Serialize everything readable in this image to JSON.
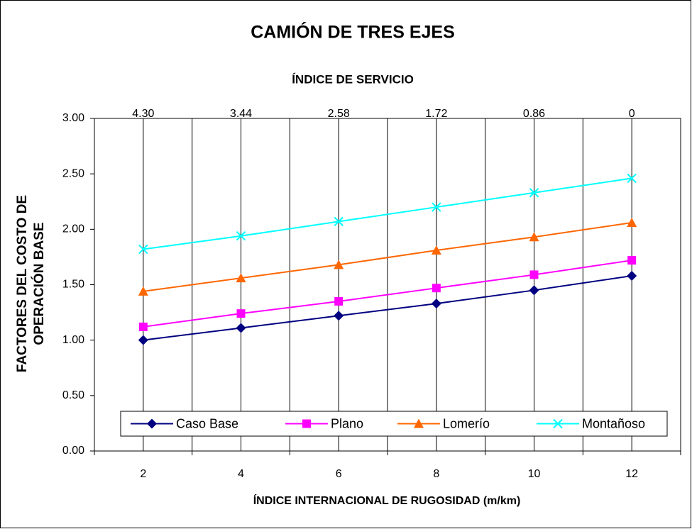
{
  "chart_data": {
    "type": "line",
    "title": "CAMIÓN DE TRES EJES",
    "x2_label": "ÍNDICE DE SERVICIO",
    "x_label": "ÍNDICE INTERNACIONAL DE RUGOSIDAD (m/km)",
    "y_label": [
      "FACTORES DEL COSTO DE",
      "OPERACIÓN BASE"
    ],
    "x": [
      2,
      4,
      6,
      8,
      10,
      12
    ],
    "xlim": [
      1,
      13
    ],
    "xticks": [
      2,
      4,
      6,
      8,
      10,
      12
    ],
    "xgrid": [
      2,
      3,
      4,
      5,
      6,
      7,
      8,
      9,
      10,
      11,
      12
    ],
    "x2lim": [
      4.73,
      -0.43
    ],
    "x2ticks": [
      {
        "value": 4.3,
        "label": "4.30"
      },
      {
        "value": 3.44,
        "label": "3.44"
      },
      {
        "value": 2.58,
        "label": "2.58"
      },
      {
        "value": 1.72,
        "label": "1.72"
      },
      {
        "value": 0.86,
        "label": "0.86"
      },
      0
    ],
    "ylim": [
      0,
      3
    ],
    "yticks": [
      {
        "value": 0,
        "label": "0.00"
      },
      {
        "value": 0.5,
        "label": "0.50"
      },
      {
        "value": 1,
        "label": "1.00"
      },
      {
        "value": 1.5,
        "label": "1.50"
      },
      {
        "value": 2,
        "label": "2.00"
      },
      {
        "value": 2.5,
        "label": "2.50"
      },
      {
        "value": 3,
        "label": "3.00"
      }
    ],
    "legend": "bottom",
    "series": [
      {
        "name": "Caso Base",
        "color": "#000080",
        "marker": "diamond",
        "values": [
          1.0,
          1.11,
          1.22,
          1.33,
          1.45,
          1.58
        ]
      },
      {
        "name": "Plano",
        "color": "#ff00ff",
        "marker": "square",
        "values": [
          1.12,
          1.24,
          1.35,
          1.47,
          1.59,
          1.72
        ]
      },
      {
        "name": "Lomerío",
        "color": "#ff6600",
        "marker": "triangle",
        "values": [
          1.44,
          1.56,
          1.68,
          1.81,
          1.93,
          2.06
        ]
      },
      {
        "name": "Montañoso",
        "color": "#00ffff",
        "marker": "cross",
        "values": [
          1.82,
          1.94,
          2.07,
          2.2,
          2.33,
          2.46
        ]
      }
    ]
  }
}
